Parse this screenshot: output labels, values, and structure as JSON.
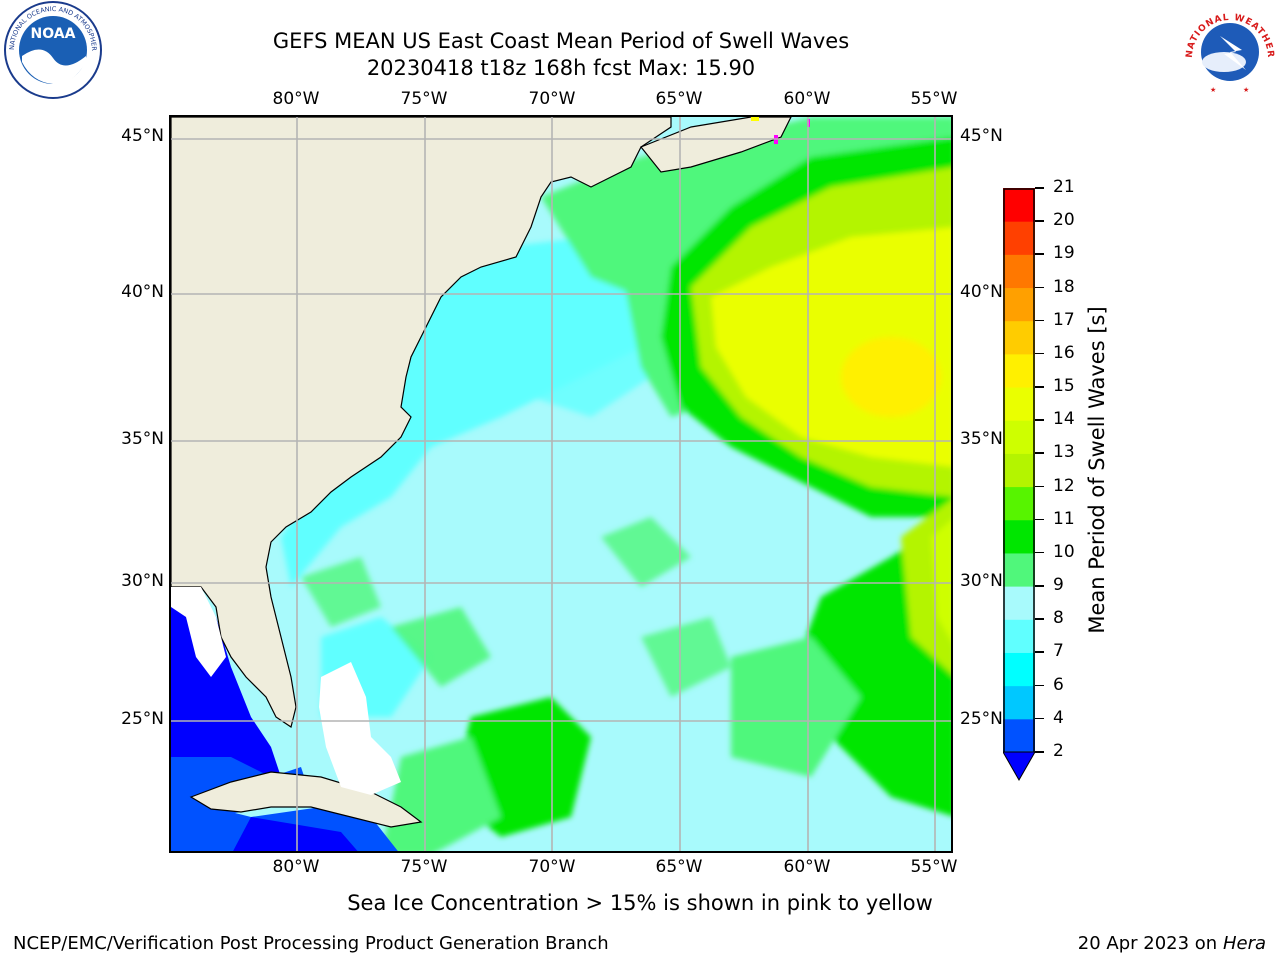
{
  "title": {
    "line1": "GEFS MEAN US East Coast Mean Period of Swell Waves",
    "line2": "20230418 t18z 168h fcst   Max: 15.90"
  },
  "logos": {
    "noaa_ring_text": "NATIONAL OCEANIC AND ATMOSPHERIC ADMINISTRATION · U.S. DEPARTMENT OF COMMERCE",
    "noaa_center": "NOAA",
    "nws_ring_text": "NATIONAL WEATHER SERVICE"
  },
  "map": {
    "lon_labels": [
      "80°W",
      "75°W",
      "70°W",
      "65°W",
      "60°W",
      "55°W"
    ],
    "lat_labels": [
      "45°N",
      "40°N",
      "35°N",
      "30°N",
      "25°N"
    ],
    "ocean_color": "#a8fafc",
    "land_color": "#efeddc"
  },
  "colorbar": {
    "label": "Mean Period of Swell Waves [s]",
    "ticks": [
      "2",
      "4",
      "6",
      "7",
      "8",
      "9",
      "10",
      "11",
      "12",
      "13",
      "14",
      "15",
      "16",
      "17",
      "18",
      "19",
      "20",
      "21"
    ],
    "colors": [
      "#0052ff",
      "#00c8ff",
      "#00ffff",
      "#60ffff",
      "#a8fafc",
      "#50f77b",
      "#00e600",
      "#57f400",
      "#b4f400",
      "#ceff00",
      "#eaff00",
      "#fff000",
      "#ffcc00",
      "#ffa000",
      "#ff7800",
      "#ff4000",
      "#ff0000"
    ],
    "under_color": "#0000ff"
  },
  "notes": {
    "sea_ice": "Sea Ice Concentration > 15% is shown in pink to yellow"
  },
  "footer": {
    "left": "NCEP/EMC/Verification Post Processing Product Generation Branch",
    "right_date": "20 Apr 2023 on ",
    "right_host": "Hera"
  }
}
